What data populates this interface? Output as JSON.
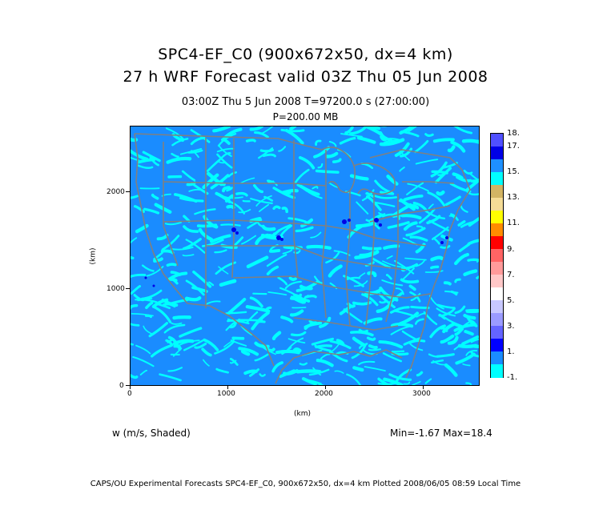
{
  "title_line1": "SPC4-EF_C0 (900x672x50, dx=4 km)",
  "title_line2": "27 h WRF Forecast valid 03Z Thu 05 Jun 2008",
  "time_line": "03:00Z Thu  5 Jun 2008     T=97200.0 s (27:00:00)",
  "pressure_line": "P=200.00 MB",
  "x_axis": {
    "label": "(km)",
    "ticks": [
      "0",
      "1000",
      "2000",
      "3000"
    ]
  },
  "y_axis": {
    "label": "(km)",
    "ticks": [
      "0",
      "1000",
      "2000"
    ]
  },
  "colorbar": {
    "labels": [
      "18.",
      "17.",
      "15.",
      "13.",
      "11.",
      "9.",
      "7.",
      "5.",
      "3.",
      "1.",
      "-1."
    ],
    "colors_top_to_bottom": [
      "#5050ff",
      "#0000e6",
      "#1e90ff",
      "#00ffff",
      "#d2b464",
      "#f5dc96",
      "#ffff00",
      "#ff8c00",
      "#ff0000",
      "#ff6464",
      "#ff9b9b",
      "#ffc8c8",
      "#ffffff",
      "#c8c8ff",
      "#9b9bff",
      "#6464ff",
      "#0000ff",
      "#1a8cff",
      "#00ffff"
    ]
  },
  "variable_label": "w (m/s, Shaded)",
  "min_max": "Min=-1.67 Max=18.4",
  "footer": "CAPS/OU Experimental Forecasts  SPC4-EF_C0, 900x672x50, dx=4 km  Plotted 2008/06/05 08:59 Local Time",
  "map_colors": {
    "background_blue": "#1a8cff",
    "cyan": "#00ffff",
    "borders": "#808080",
    "strong_updraft": "#0000e6"
  }
}
